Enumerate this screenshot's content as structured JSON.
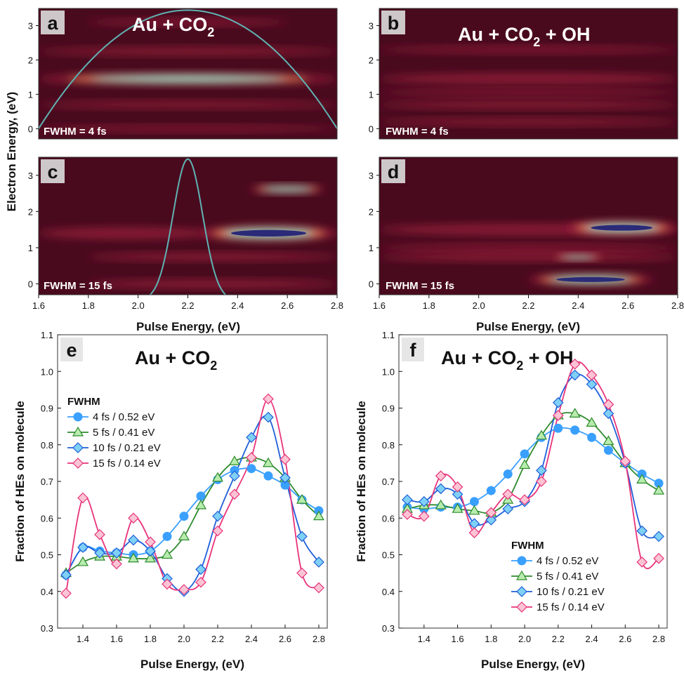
{
  "heatmap_panels": [
    {
      "letter": "a",
      "title_main": "Au + CO",
      "title_sub": "2",
      "title_tail": "",
      "fwhm": "FWHM = 4 fs"
    },
    {
      "letter": "b",
      "title_main": "Au + CO",
      "title_sub": "2",
      "title_tail": " + OH",
      "fwhm": "FWHM = 4 fs"
    },
    {
      "letter": "c",
      "title_main": "",
      "title_sub": "",
      "title_tail": "",
      "fwhm": "FWHM = 15 fs"
    },
    {
      "letter": "d",
      "title_main": "",
      "title_sub": "",
      "title_tail": "",
      "fwhm": "FWHM = 15 fs"
    }
  ],
  "heatmap_y_label": "Electron Energy, (eV)",
  "heatmap_x_label": "Pulse Energy, (eV)",
  "heatmap_x_ticks": [
    "1.6",
    "1.8",
    "2.0",
    "2.2",
    "2.4",
    "2.6",
    "2.8"
  ],
  "heatmap_y_ticks": [
    "0",
    "1",
    "2",
    "3"
  ],
  "line_panels": [
    {
      "letter": "e",
      "title_main": "Au + CO",
      "title_sub": "2",
      "title_tail": ""
    },
    {
      "letter": "f",
      "title_main": "Au + CO",
      "title_sub": "2",
      "title_tail": " + OH"
    }
  ],
  "line_y_label": "Fraction of HEs on molecule",
  "line_x_label": "Pulse Energy, (eV)",
  "line_x_ticks": [
    "1.4",
    "1.6",
    "1.8",
    "2.0",
    "2.2",
    "2.4",
    "2.6",
    "2.8"
  ],
  "line_y_ticks": [
    "0.3",
    "0.4",
    "0.5",
    "0.6",
    "0.7",
    "0.8",
    "0.9",
    "1.0",
    "1.1"
  ],
  "legend_title": "FWHM",
  "colors": {
    "heat_bg": "#4a0a1e",
    "pulse": "#5fb3b3",
    "s4": "#1e88e5",
    "s5": "#2e8b2e",
    "s10": "#1f5fd9",
    "s15": "#e8337a"
  },
  "chart_data": [
    {
      "type": "heatmap",
      "panel": "a",
      "xlim": [
        1.6,
        2.8
      ],
      "ylim": [
        -0.3,
        3.5
      ],
      "bands": [
        {
          "x0": 1.6,
          "x1": 2.8,
          "y": 1.45,
          "h": 0.32,
          "intensity": 0.8
        },
        {
          "x0": 1.6,
          "x1": 2.8,
          "y": 2.25,
          "h": 0.22,
          "intensity": 0.45
        },
        {
          "x0": 1.6,
          "x1": 2.8,
          "y": 0.7,
          "h": 0.2,
          "intensity": 0.45
        },
        {
          "x0": 1.6,
          "x1": 2.8,
          "y": 0.0,
          "h": 0.18,
          "intensity": 0.3
        },
        {
          "x0": 1.8,
          "x1": 2.6,
          "y": 3.1,
          "h": 0.2,
          "intensity": 0.3
        }
      ],
      "pulse": {
        "center": 2.2,
        "fwhm_ev": 0.52,
        "peak": 3.45
      }
    },
    {
      "type": "heatmap",
      "panel": "b",
      "xlim": [
        1.6,
        2.8
      ],
      "ylim": [
        -0.3,
        3.5
      ],
      "bands": [
        {
          "x0": 1.6,
          "x1": 2.8,
          "y": 1.45,
          "h": 0.3,
          "intensity": 0.55
        },
        {
          "x0": 1.6,
          "x1": 2.8,
          "y": 0.7,
          "h": 0.22,
          "intensity": 0.55
        },
        {
          "x0": 1.6,
          "x1": 2.8,
          "y": 0.2,
          "h": 0.2,
          "intensity": 0.45
        },
        {
          "x0": 1.6,
          "x1": 2.8,
          "y": 2.3,
          "h": 0.2,
          "intensity": 0.3
        },
        {
          "x0": 1.6,
          "x1": 2.8,
          "y": 1.05,
          "h": 0.2,
          "intensity": 0.3
        }
      ]
    },
    {
      "type": "heatmap",
      "panel": "c",
      "xlim": [
        1.6,
        2.8
      ],
      "ylim": [
        -0.3,
        3.5
      ],
      "bands": [
        {
          "x0": 1.6,
          "x1": 2.3,
          "y": 1.4,
          "h": 0.3,
          "intensity": 0.55
        },
        {
          "x0": 2.25,
          "x1": 2.8,
          "y": 1.4,
          "h": 0.4,
          "intensity": 1.0
        },
        {
          "x0": 1.8,
          "x1": 2.8,
          "y": 0.75,
          "h": 0.2,
          "intensity": 0.55
        },
        {
          "x0": 1.8,
          "x1": 2.8,
          "y": 0.0,
          "h": 0.22,
          "intensity": 0.55
        },
        {
          "x0": 2.45,
          "x1": 2.75,
          "y": 2.62,
          "h": 0.22,
          "intensity": 0.9
        }
      ],
      "pulse": {
        "center": 2.2,
        "fwhm_ev": 0.14,
        "peak": 3.45
      }
    },
    {
      "type": "heatmap",
      "panel": "d",
      "xlim": [
        1.6,
        2.8
      ],
      "ylim": [
        -0.3,
        3.5
      ],
      "bands": [
        {
          "x0": 1.6,
          "x1": 2.8,
          "y": 1.5,
          "h": 0.3,
          "intensity": 0.55
        },
        {
          "x0": 2.35,
          "x1": 2.8,
          "y": 1.55,
          "h": 0.35,
          "intensity": 1.0
        },
        {
          "x0": 1.6,
          "x1": 2.8,
          "y": 0.75,
          "h": 0.22,
          "intensity": 0.65
        },
        {
          "x0": 2.3,
          "x1": 2.5,
          "y": 0.75,
          "h": 0.16,
          "intensity": 0.9
        },
        {
          "x0": 2.2,
          "x1": 2.7,
          "y": 0.12,
          "h": 0.3,
          "intensity": 1.0
        },
        {
          "x0": 1.6,
          "x1": 2.8,
          "y": 1.0,
          "h": 0.2,
          "intensity": 0.35
        }
      ]
    },
    {
      "type": "line",
      "panel": "e",
      "title": "Au + CO2",
      "xlabel": "Pulse Energy, (eV)",
      "ylabel": "Fraction of HEs on molecule",
      "xlim": [
        1.25,
        2.85
      ],
      "ylim": [
        0.3,
        1.1
      ],
      "x": [
        1.3,
        1.4,
        1.5,
        1.6,
        1.7,
        1.8,
        1.9,
        2.0,
        2.1,
        2.2,
        2.3,
        2.4,
        2.5,
        2.6,
        2.7,
        2.8
      ],
      "series": [
        {
          "name": "4 fs / 0.52 eV",
          "marker": "circle",
          "values": [
            0.445,
            0.52,
            0.51,
            0.505,
            0.5,
            0.51,
            0.55,
            0.605,
            0.66,
            0.705,
            0.73,
            0.735,
            0.715,
            0.69,
            0.65,
            0.62
          ]
        },
        {
          "name": "5 fs / 0.41 eV",
          "marker": "triangle",
          "values": [
            0.45,
            0.48,
            0.495,
            0.495,
            0.49,
            0.49,
            0.5,
            0.55,
            0.635,
            0.71,
            0.755,
            0.765,
            0.75,
            0.71,
            0.65,
            0.605
          ]
        },
        {
          "name": "10 fs / 0.21 eV",
          "marker": "diamond",
          "values": [
            0.445,
            0.52,
            0.505,
            0.505,
            0.54,
            0.51,
            0.435,
            0.4,
            0.46,
            0.605,
            0.715,
            0.82,
            0.875,
            0.71,
            0.55,
            0.48
          ]
        },
        {
          "name": "15 fs / 0.14 eV",
          "marker": "diamond",
          "values": [
            0.395,
            0.655,
            0.555,
            0.475,
            0.6,
            0.535,
            0.42,
            0.405,
            0.425,
            0.565,
            0.665,
            0.765,
            0.925,
            0.76,
            0.45,
            0.41
          ]
        }
      ],
      "legend_position": "middle-left"
    },
    {
      "type": "line",
      "panel": "f",
      "title": "Au + CO2 + OH",
      "xlabel": "Pulse Energy, (eV)",
      "ylabel": "Fraction of HEs on molecule",
      "xlim": [
        1.25,
        2.85
      ],
      "ylim": [
        0.3,
        1.1
      ],
      "x": [
        1.3,
        1.4,
        1.5,
        1.6,
        1.7,
        1.8,
        1.9,
        2.0,
        2.1,
        2.2,
        2.3,
        2.4,
        2.5,
        2.6,
        2.7,
        2.8
      ],
      "series": [
        {
          "name": "4 fs / 0.52 eV",
          "marker": "circle",
          "values": [
            0.63,
            0.625,
            0.63,
            0.63,
            0.645,
            0.675,
            0.72,
            0.775,
            0.82,
            0.845,
            0.84,
            0.82,
            0.785,
            0.75,
            0.72,
            0.695
          ]
        },
        {
          "name": "5 fs / 0.41 eV",
          "marker": "triangle",
          "values": [
            0.625,
            0.635,
            0.635,
            0.625,
            0.62,
            0.615,
            0.65,
            0.745,
            0.825,
            0.88,
            0.885,
            0.86,
            0.81,
            0.75,
            0.705,
            0.675
          ]
        },
        {
          "name": "10 fs / 0.21 eV",
          "marker": "diamond",
          "values": [
            0.65,
            0.645,
            0.68,
            0.665,
            0.585,
            0.595,
            0.625,
            0.645,
            0.73,
            0.915,
            0.99,
            0.965,
            0.885,
            0.75,
            0.565,
            0.55
          ]
        },
        {
          "name": "15 fs / 0.14 eV",
          "marker": "diamond",
          "values": [
            0.61,
            0.605,
            0.715,
            0.685,
            0.56,
            0.615,
            0.665,
            0.65,
            0.7,
            0.88,
            1.02,
            0.99,
            0.91,
            0.755,
            0.48,
            0.49
          ]
        }
      ],
      "legend_position": "bottom-right"
    }
  ]
}
